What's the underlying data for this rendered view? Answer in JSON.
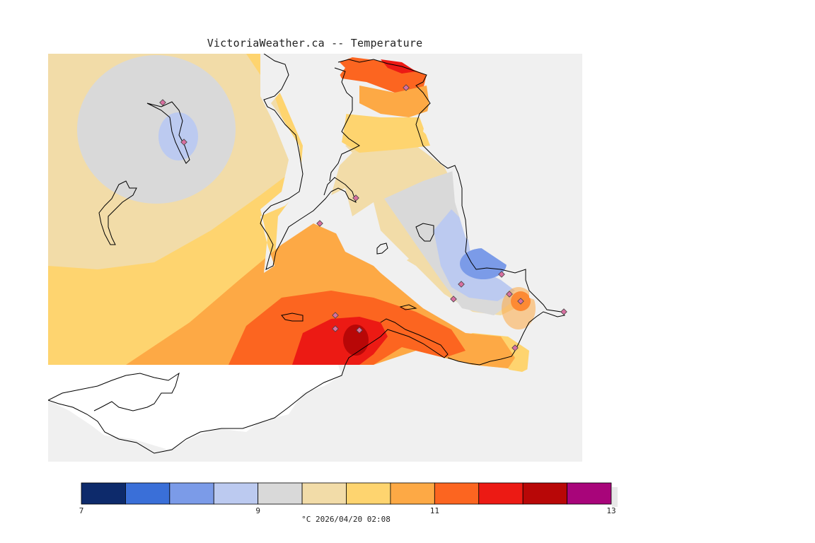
{
  "title": "VictoriaWeather.ca -- Temperature",
  "colors": {
    "land_base": "#f0f0f0",
    "coast": "#000000",
    "station_fill": "#d86fa0"
  },
  "legend": {
    "bins": [
      {
        "from": 7.0,
        "to": 7.5,
        "color": "#0d2a6b"
      },
      {
        "from": 7.5,
        "to": 8.0,
        "color": "#3a6fd8"
      },
      {
        "from": 8.0,
        "to": 8.5,
        "color": "#7b9be8"
      },
      {
        "from": 8.5,
        "to": 9.0,
        "color": "#bccaf0"
      },
      {
        "from": 9.0,
        "to": 9.5,
        "color": "#d9d9d9"
      },
      {
        "from": 9.5,
        "to": 10.0,
        "color": "#f2dca8"
      },
      {
        "from": 10.0,
        "to": 10.5,
        "color": "#fed46f"
      },
      {
        "from": 10.5,
        "to": 11.0,
        "color": "#fda945"
      },
      {
        "from": 11.0,
        "to": 11.5,
        "color": "#fc6520"
      },
      {
        "from": 11.5,
        "to": 12.0,
        "color": "#ec1a14"
      },
      {
        "from": 12.0,
        "to": 12.5,
        "color": "#b80707"
      },
      {
        "from": 12.5,
        "to": 13.0,
        "color": "#a8057a"
      }
    ],
    "ticks": [
      "7",
      "9",
      "11",
      "13"
    ],
    "tick_values": [
      7,
      9,
      11,
      13
    ],
    "unit_time": "°C  2026/04/20 02:08"
  }
}
